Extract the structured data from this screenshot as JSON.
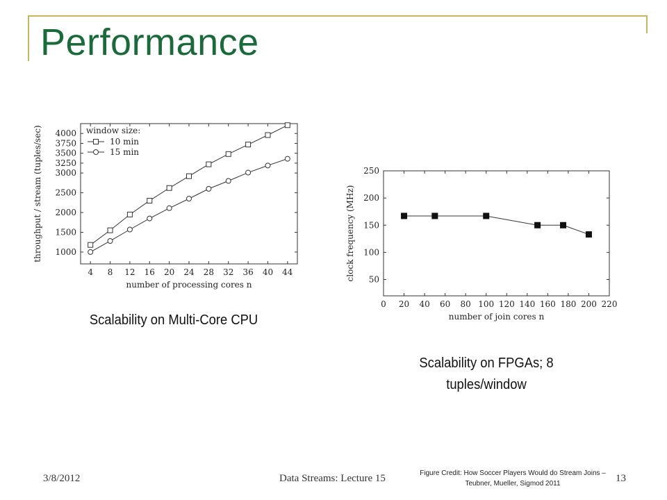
{
  "slide": {
    "title": "Performance",
    "footer_date": "3/8/2012",
    "footer_center": "Data Streams: Lecture 15",
    "footer_credit_line1": "Figure Credit: How Soccer Players Would do Stream Joins –",
    "footer_credit_line2": "Teubner, Mueller, Sigmod 2011",
    "page_number": "13"
  },
  "captions": {
    "cpu": "Scalability on Multi-Core CPU",
    "fpga_line1": "Scalability on FPGAs; 8",
    "fpga_line2": "tuples/window"
  },
  "colors": {
    "title": "#1a6b3a",
    "frame": "#c8b560"
  },
  "chart_data": [
    {
      "type": "line",
      "title": "",
      "xlabel": "number of processing cores n",
      "ylabel": "throughput / stream (tuples/sec)",
      "x": [
        4,
        8,
        12,
        16,
        20,
        24,
        28,
        32,
        36,
        40,
        44
      ],
      "xlim": [
        2,
        46
      ],
      "ylim": [
        700,
        4250
      ],
      "xticks": [
        4,
        8,
        12,
        16,
        20,
        24,
        28,
        32,
        36,
        40,
        44
      ],
      "yticks": [
        1000,
        1500,
        2000,
        2500,
        3000,
        3250,
        3500,
        3750,
        4000
      ],
      "legend_title": "window size:",
      "legend_position": "top-left",
      "grid": false,
      "series": [
        {
          "name": "10 min",
          "marker": "square",
          "values": [
            1180,
            1550,
            1950,
            2300,
            2620,
            2920,
            3220,
            3480,
            3720,
            3960,
            4210
          ]
        },
        {
          "name": "15 min",
          "marker": "circle",
          "values": [
            1000,
            1280,
            1570,
            1850,
            2110,
            2350,
            2600,
            2800,
            3010,
            3190,
            3360
          ]
        }
      ]
    },
    {
      "type": "line",
      "title": "",
      "xlabel": "number of join cores n",
      "ylabel": "clock frequency (MHz)",
      "x": [
        20,
        50,
        100,
        150,
        175,
        200
      ],
      "xlim": [
        0,
        220
      ],
      "ylim": [
        20,
        250
      ],
      "xticks": [
        0,
        20,
        40,
        60,
        80,
        100,
        120,
        140,
        160,
        180,
        200,
        220
      ],
      "yticks": [
        50,
        100,
        150,
        200,
        250
      ],
      "grid": false,
      "series": [
        {
          "marker": "filled-square",
          "values": [
            167,
            167,
            167,
            150,
            150,
            133
          ]
        }
      ]
    }
  ]
}
